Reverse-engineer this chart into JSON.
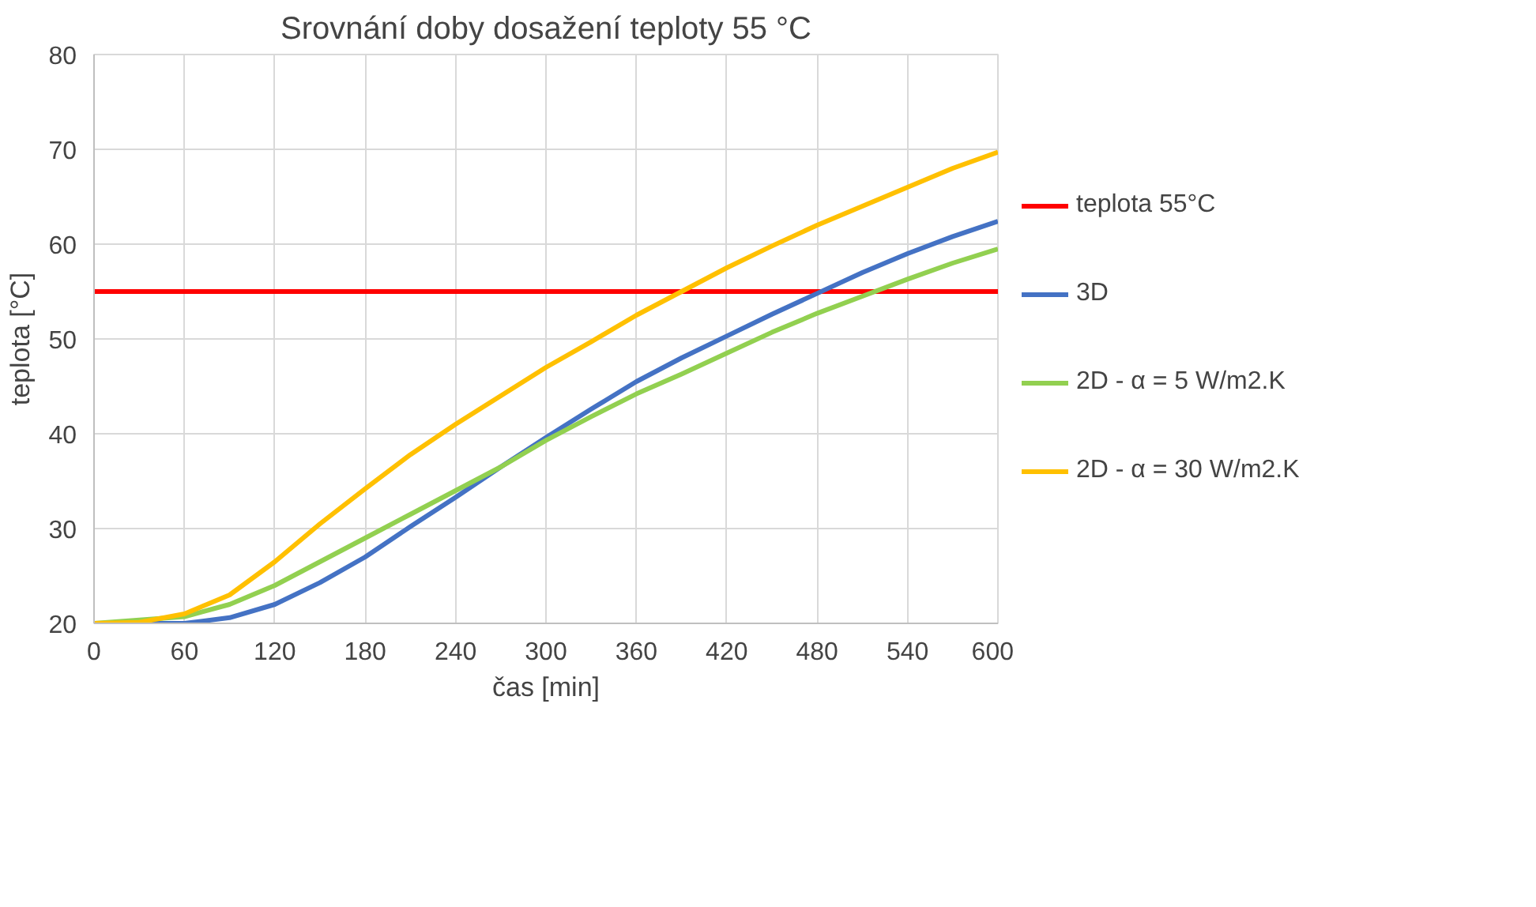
{
  "chart_data": {
    "type": "line",
    "title": "Srovnání doby dosažení teploty 55 °C",
    "xlabel": "čas [min]",
    "ylabel": "teplota [°C]",
    "x": [
      0,
      30,
      60,
      90,
      120,
      150,
      180,
      210,
      240,
      270,
      300,
      330,
      360,
      390,
      420,
      450,
      480,
      510,
      540,
      570,
      600
    ],
    "series": [
      {
        "name": "teplota 55°C",
        "color": "#ff0000",
        "x": [
          0,
          600
        ],
        "values": [
          55,
          55
        ]
      },
      {
        "name": "3D",
        "color": "#4472c4",
        "x": [
          0,
          60,
          90,
          120,
          150,
          180,
          210,
          240,
          270,
          300,
          330,
          360,
          390,
          420,
          450,
          480,
          510,
          540,
          570,
          600
        ],
        "values": [
          20,
          20,
          20.6,
          22,
          24.3,
          27,
          30.2,
          33.3,
          36.5,
          39.6,
          42.6,
          45.5,
          48,
          50.3,
          52.6,
          54.8,
          57,
          59,
          60.8,
          62.4
        ]
      },
      {
        "name": "2D - α = 5 W/m2.K",
        "color": "#92d050",
        "x": [
          0,
          60,
          90,
          120,
          150,
          180,
          210,
          240,
          270,
          300,
          330,
          360,
          390,
          420,
          450,
          480,
          510,
          540,
          570,
          600
        ],
        "values": [
          20,
          20.7,
          22,
          24,
          26.5,
          29,
          31.5,
          34,
          36.5,
          39.3,
          41.8,
          44.2,
          46.3,
          48.5,
          50.7,
          52.7,
          54.5,
          56.3,
          58,
          59.5
        ]
      },
      {
        "name": "2D - α = 30 W/m2.K",
        "color": "#ffc000",
        "values": [
          20,
          20.1,
          21,
          23,
          26.5,
          30.5,
          34.2,
          37.8,
          41,
          44,
          47,
          49.7,
          52.5,
          55,
          57.5,
          59.8,
          62,
          64,
          66,
          68,
          69.7
        ]
      }
    ],
    "xlim": [
      0,
      600
    ],
    "ylim": [
      20,
      80
    ],
    "xticks": [
      0,
      60,
      120,
      180,
      240,
      300,
      360,
      420,
      480,
      540,
      600
    ],
    "yticks": [
      20,
      30,
      40,
      50,
      60,
      70,
      80
    ],
    "grid": true,
    "legend": "right",
    "marker": "none",
    "line_style": "solid"
  }
}
